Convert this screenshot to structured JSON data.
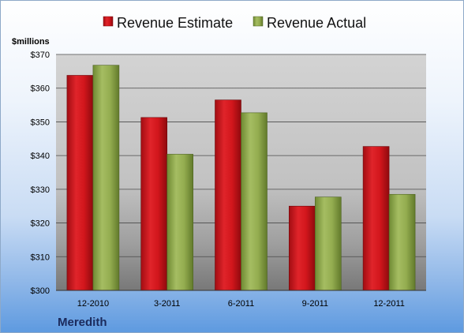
{
  "chart_data": {
    "type": "bar",
    "unit_label": "$millions",
    "company": "Meredith",
    "categories": [
      "12-2010",
      "3-2011",
      "6-2011",
      "9-2011",
      "12-2011"
    ],
    "series": [
      {
        "name": "Revenue Estimate",
        "color": "#d1141b",
        "values": [
          363.8,
          351.3,
          356.5,
          325.0,
          342.7
        ]
      },
      {
        "name": "Revenue Actual",
        "color": "#8fa84a",
        "values": [
          366.8,
          340.4,
          352.7,
          327.7,
          328.5
        ]
      }
    ],
    "ylim": [
      300,
      370
    ],
    "yticks": [
      300,
      310,
      320,
      330,
      340,
      350,
      360,
      370
    ],
    "ytick_labels": [
      "$300",
      "$310",
      "$320",
      "$330",
      "$340",
      "$350",
      "$360",
      "$370"
    ],
    "grid": true,
    "legend_position": "top"
  }
}
